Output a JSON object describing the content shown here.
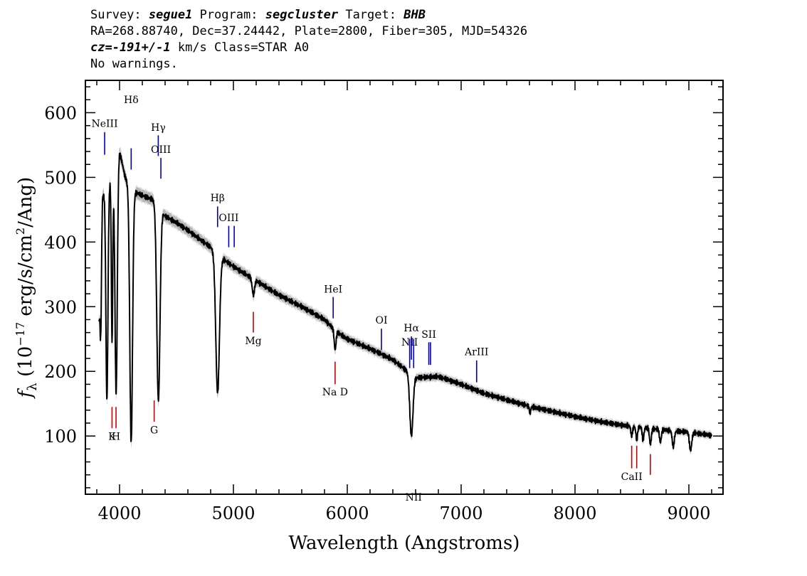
{
  "header": {
    "survey_label": "Survey:",
    "survey_value": "segue1",
    "program_label": "Program:",
    "program_value": "segcluster",
    "target_label": "Target:",
    "target_value": "BHB",
    "line2": "RA=268.88740, Dec=37.24442, Plate=2800, Fiber=305, MJD=54326",
    "cz_value": "cz=-191+/-1",
    "cz_rest": "km/s Class=STAR A0",
    "warnings": "No warnings."
  },
  "chart_data": {
    "type": "line",
    "xlabel": "Wavelength (Angstroms)",
    "ylabel": "f_λ (10^-17 erg/s/cm^2/Ang)",
    "xlim": [
      3700,
      9300
    ],
    "ylim": [
      10,
      650
    ],
    "x_ticks": [
      4000,
      5000,
      6000,
      7000,
      8000,
      9000
    ],
    "y_ticks": [
      100,
      200,
      300,
      400,
      500,
      600
    ],
    "grid": false,
    "colors": {
      "spectrum": "#000000",
      "error_band": "#b4b4b4",
      "emission": "#0000b4",
      "absorption": "#cc0000"
    },
    "continuum": [
      [
        3820,
        280
      ],
      [
        3850,
        470
      ],
      [
        3900,
        490
      ],
      [
        3950,
        500
      ],
      [
        4000,
        540
      ],
      [
        4050,
        500
      ],
      [
        4100,
        480
      ],
      [
        4200,
        472
      ],
      [
        4300,
        465
      ],
      [
        4400,
        440
      ],
      [
        4500,
        430
      ],
      [
        4600,
        418
      ],
      [
        4700,
        405
      ],
      [
        4800,
        392
      ],
      [
        4900,
        375
      ],
      [
        5000,
        362
      ],
      [
        5200,
        340
      ],
      [
        5400,
        318
      ],
      [
        5600,
        300
      ],
      [
        5800,
        280
      ],
      [
        5900,
        262
      ],
      [
        6000,
        250
      ],
      [
        6200,
        235
      ],
      [
        6400,
        218
      ],
      [
        6600,
        190
      ],
      [
        6800,
        192
      ],
      [
        7000,
        180
      ],
      [
        7200,
        166
      ],
      [
        7400,
        156
      ],
      [
        7600,
        146
      ],
      [
        7800,
        138
      ],
      [
        8000,
        130
      ],
      [
        8200,
        123
      ],
      [
        8400,
        117
      ],
      [
        8600,
        113
      ],
      [
        8800,
        109
      ],
      [
        9000,
        106
      ],
      [
        9200,
        101
      ]
    ],
    "absorption_features": [
      {
        "center": 3835,
        "depth": 120,
        "width": 6
      },
      {
        "center": 3889,
        "depth": 330,
        "width": 9
      },
      {
        "center": 3934,
        "depth": 250,
        "width": 6
      },
      {
        "center": 3970,
        "depth": 350,
        "width": 10
      },
      {
        "center": 4102,
        "depth": 390,
        "width": 12
      },
      {
        "center": 4341,
        "depth": 300,
        "width": 14
      },
      {
        "center": 4861,
        "depth": 215,
        "width": 16
      },
      {
        "center": 5175,
        "depth": 25,
        "width": 10
      },
      {
        "center": 5893,
        "depth": 30,
        "width": 8
      },
      {
        "center": 6563,
        "depth": 95,
        "width": 14
      },
      {
        "center": 7605,
        "depth": 10,
        "width": 6
      },
      {
        "center": 8498,
        "depth": 15,
        "width": 7
      },
      {
        "center": 8542,
        "depth": 20,
        "width": 7
      },
      {
        "center": 8598,
        "depth": 20,
        "width": 7
      },
      {
        "center": 8662,
        "depth": 25,
        "width": 8
      },
      {
        "center": 8750,
        "depth": 20,
        "width": 8
      },
      {
        "center": 8863,
        "depth": 25,
        "width": 9
      },
      {
        "center": 9015,
        "depth": 28,
        "width": 10
      }
    ],
    "line_markers": [
      {
        "label": "NeIII",
        "kind": "emission",
        "x": 3869,
        "y1": 535,
        "y2": 570,
        "ty": 578
      },
      {
        "label": "Hδ",
        "kind": "emission",
        "x": 4102,
        "y1": 512,
        "y2": 545,
        "ty": 615
      },
      {
        "label": "Hγ",
        "kind": "emission",
        "x": 4340,
        "y1": 533,
        "y2": 565,
        "ty": 572
      },
      {
        "label": "OIII",
        "kind": "emission",
        "x": 4363,
        "y1": 498,
        "y2": 530,
        "ty": 538
      },
      {
        "label": "Hβ",
        "kind": "emission",
        "x": 4861,
        "y1": 423,
        "y2": 455,
        "ty": 463
      },
      {
        "label": "OIII",
        "kind": "emission",
        "x": 4959,
        "y1": 392,
        "y2": 425,
        "ty": 432
      },
      {
        "label": "",
        "kind": "emission",
        "x": 5007,
        "y1": 392,
        "y2": 425,
        "ty": 0
      },
      {
        "label": "HeI",
        "kind": "emission",
        "x": 5876,
        "y1": 282,
        "y2": 315,
        "ty": 322
      },
      {
        "label": "OI",
        "kind": "emission",
        "x": 6300,
        "y1": 233,
        "y2": 266,
        "ty": 274
      },
      {
        "label": "NII",
        "kind": "emission",
        "x": 6548,
        "y1": 205,
        "y2": 250,
        "ty": 240
      },
      {
        "label": "Hα",
        "kind": "emission",
        "x": 6563,
        "y1": 218,
        "y2": 254,
        "ty": 262
      },
      {
        "label": "NII",
        "kind": "emission",
        "x": 6583,
        "y1": 205,
        "y2": 250,
        "ty": 0
      },
      {
        "label": "SII",
        "kind": "emission",
        "x": 6716,
        "y1": 210,
        "y2": 245,
        "ty": 252
      },
      {
        "label": "",
        "kind": "emission",
        "x": 6731,
        "y1": 210,
        "y2": 245,
        "ty": 0
      },
      {
        "label": "ArIII",
        "kind": "emission",
        "x": 7136,
        "y1": 183,
        "y2": 217,
        "ty": 225
      },
      {
        "label": "K",
        "kind": "absorption",
        "x": 3934,
        "y1": 112,
        "y2": 145,
        "ty": 94
      },
      {
        "label": "H",
        "kind": "absorption",
        "x": 3969,
        "y1": 112,
        "y2": 145,
        "ty": 94
      },
      {
        "label": "G",
        "kind": "absorption",
        "x": 4304,
        "y1": 122,
        "y2": 155,
        "ty": 104
      },
      {
        "label": "Mg",
        "kind": "absorption",
        "x": 5175,
        "y1": 260,
        "y2": 292,
        "ty": 242
      },
      {
        "label": "Na D",
        "kind": "absorption",
        "x": 5893,
        "y1": 180,
        "y2": 215,
        "ty": 163
      },
      {
        "label": "CaII",
        "kind": "absorption",
        "x": 8498,
        "y1": 50,
        "y2": 85,
        "ty": 32
      },
      {
        "label": "",
        "kind": "absorption",
        "x": 8542,
        "y1": 50,
        "y2": 85,
        "ty": 0
      },
      {
        "label": "",
        "kind": "absorption",
        "x": 8662,
        "y1": 40,
        "y2": 72,
        "ty": 0
      }
    ]
  }
}
